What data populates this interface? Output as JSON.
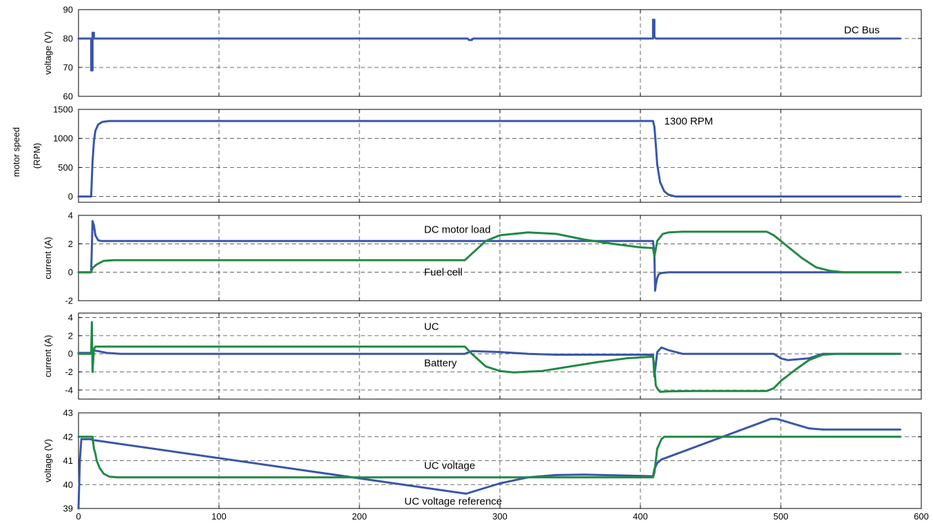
{
  "colors": {
    "blue": "#3a56a8",
    "green": "#1f8a42"
  },
  "chart_data": [
    {
      "type": "line",
      "ylabel": "voltage (V)",
      "xlim": [
        0,
        600
      ],
      "ylim": [
        60,
        90
      ],
      "xticks": [
        0,
        100,
        200,
        300,
        400,
        500,
        600
      ],
      "yticks": [
        60,
        70,
        80,
        90
      ],
      "show_xtick_labels": false,
      "grid": true,
      "series": [
        {
          "color": "blue",
          "x": [
            0,
            9,
            9,
            10,
            10,
            11,
            11,
            12,
            277,
            278,
            280,
            281,
            409,
            409,
            410,
            410,
            411,
            585
          ],
          "y": [
            80,
            80,
            69,
            69,
            82,
            82,
            80,
            80,
            80,
            79.5,
            79.5,
            80,
            80,
            86.5,
            86.5,
            80.5,
            80,
            80
          ]
        }
      ],
      "annotations": [
        {
          "text": "DC Bus",
          "x": 545,
          "y": 83
        }
      ]
    },
    {
      "type": "line",
      "ylabel": "(RPM)",
      "xlim": [
        0,
        600
      ],
      "ylim": [
        -100,
        1500
      ],
      "xticks": [
        0,
        100,
        200,
        300,
        400,
        500,
        600
      ],
      "yticks": [
        0,
        500,
        1000,
        1500
      ],
      "show_xtick_labels": false,
      "grid": true,
      "series": [
        {
          "color": "blue",
          "x": [
            0,
            9,
            10,
            11,
            12,
            14,
            17,
            22,
            30,
            409,
            410,
            411,
            412,
            414,
            417,
            420,
            425,
            585
          ],
          "y": [
            0,
            0,
            600,
            950,
            1130,
            1240,
            1285,
            1300,
            1300,
            1300,
            1200,
            900,
            550,
            250,
            90,
            30,
            0,
            0
          ]
        }
      ],
      "annotations": [
        {
          "text": "1300 RPM",
          "x": 417,
          "y": 1300
        }
      ]
    },
    {
      "type": "line",
      "ylabel": "current (A)",
      "xlim": [
        0,
        600
      ],
      "ylim": [
        -2,
        4
      ],
      "xticks": [
        0,
        100,
        200,
        300,
        400,
        500,
        600
      ],
      "yticks": [
        -2,
        0,
        2,
        4
      ],
      "show_xtick_labels": false,
      "grid": true,
      "series": [
        {
          "color": "blue",
          "x": [
            0,
            9,
            10,
            11,
            12,
            14,
            16,
            409,
            410,
            410.5,
            411,
            412,
            413,
            415,
            420,
            585
          ],
          "y": [
            0,
            0,
            3.6,
            3.3,
            2.6,
            2.25,
            2.2,
            2.2,
            1.2,
            -1.3,
            -0.9,
            -0.4,
            -0.15,
            -0.05,
            0,
            0
          ]
        },
        {
          "color": "green",
          "x": [
            0,
            9,
            10,
            13,
            18,
            25,
            275,
            280,
            290,
            300,
            320,
            340,
            360,
            380,
            400,
            409,
            410,
            412,
            416,
            420,
            430,
            450,
            490,
            495,
            505,
            515,
            525,
            535,
            545,
            585
          ],
          "y": [
            0,
            0,
            0.3,
            0.55,
            0.8,
            0.85,
            0.85,
            1.3,
            2.2,
            2.6,
            2.8,
            2.7,
            2.3,
            2.0,
            1.75,
            1.7,
            1.1,
            2.2,
            2.7,
            2.8,
            2.85,
            2.85,
            2.85,
            2.6,
            1.8,
            1.0,
            0.35,
            0.1,
            0,
            0
          ]
        }
      ],
      "annotations": [
        {
          "text": "DC motor load",
          "x": 246,
          "y": 3
        },
        {
          "text": "Fuel cell",
          "x": 246,
          "y": 0
        }
      ]
    },
    {
      "type": "line",
      "ylabel": "current (A)",
      "xlim": [
        0,
        600
      ],
      "ylim": [
        -5,
        4.5
      ],
      "xticks": [
        0,
        100,
        200,
        300,
        400,
        500,
        600
      ],
      "yticks": [
        -4,
        -2,
        0,
        2,
        4
      ],
      "show_xtick_labels": false,
      "grid": true,
      "series": [
        {
          "color": "blue",
          "x": [
            0,
            9,
            10,
            14,
            20,
            30,
            275,
            280,
            300,
            320,
            340,
            360,
            380,
            409,
            410,
            412,
            415,
            420,
            430,
            495,
            500,
            505,
            520,
            530,
            585
          ],
          "y": [
            0.1,
            0.1,
            0.4,
            0.3,
            0.1,
            0,
            0,
            0.3,
            0.2,
            0,
            -0.1,
            -0.1,
            -0.1,
            -0.1,
            -2.5,
            0.2,
            0.7,
            0.4,
            0,
            0,
            -0.5,
            -0.7,
            -0.5,
            0,
            0
          ]
        },
        {
          "color": "green",
          "x": [
            0,
            9,
            9.5,
            10,
            11,
            12,
            14,
            275,
            280,
            290,
            300,
            310,
            330,
            350,
            370,
            390,
            409,
            410,
            411,
            412,
            414,
            420,
            440,
            490,
            495,
            500,
            510,
            520,
            530,
            540,
            585
          ],
          "y": [
            0,
            0,
            3.5,
            -2.0,
            0.5,
            0.8,
            0.8,
            0.8,
            0,
            -1.4,
            -1.9,
            -2.05,
            -1.9,
            -1.4,
            -0.9,
            -0.5,
            -0.3,
            -1.5,
            -3.5,
            -3.8,
            -4.2,
            -4.15,
            -4.1,
            -4.1,
            -3.8,
            -3.0,
            -1.8,
            -0.7,
            -0.1,
            0,
            0
          ]
        }
      ],
      "annotations": [
        {
          "text": "UC",
          "x": 246,
          "y": 3
        },
        {
          "text": "Battery",
          "x": 246,
          "y": -1
        }
      ]
    },
    {
      "type": "line",
      "ylabel": "voltage (V)",
      "xlim": [
        0,
        600
      ],
      "ylim": [
        39,
        43
      ],
      "xticks": [
        0,
        100,
        200,
        300,
        400,
        500,
        600
      ],
      "yticks": [
        39,
        40,
        41,
        42,
        43
      ],
      "show_xtick_labels": true,
      "grid": true,
      "series": [
        {
          "color": "blue",
          "x": [
            0,
            1,
            2,
            9,
            10,
            12,
            276,
            300,
            320,
            340,
            360,
            409,
            410,
            412,
            415,
            493,
            497,
            520,
            530,
            585
          ],
          "y": [
            39,
            41,
            41.9,
            41.9,
            41.85,
            41.85,
            39.62,
            40.05,
            40.3,
            40.4,
            40.42,
            40.35,
            40.65,
            40.9,
            41.05,
            42.75,
            42.75,
            42.35,
            42.3,
            42.3
          ]
        },
        {
          "color": "green",
          "x": [
            0,
            9,
            10,
            11,
            12,
            13,
            15,
            18,
            22,
            28,
            35,
            409,
            410,
            411,
            412,
            415,
            417,
            585
          ],
          "y": [
            42,
            42,
            42,
            41.5,
            41.3,
            41.0,
            40.7,
            40.45,
            40.33,
            40.3,
            40.3,
            40.3,
            40.5,
            41.0,
            41.5,
            41.9,
            42,
            42
          ]
        }
      ],
      "annotations": [
        {
          "text": "UC voltage",
          "x": 246,
          "y": 40.8
        },
        {
          "text": "UC voltage reference",
          "x": 232,
          "y": 39.3
        }
      ]
    }
  ],
  "left_label_lines": [
    "motor speed"
  ]
}
